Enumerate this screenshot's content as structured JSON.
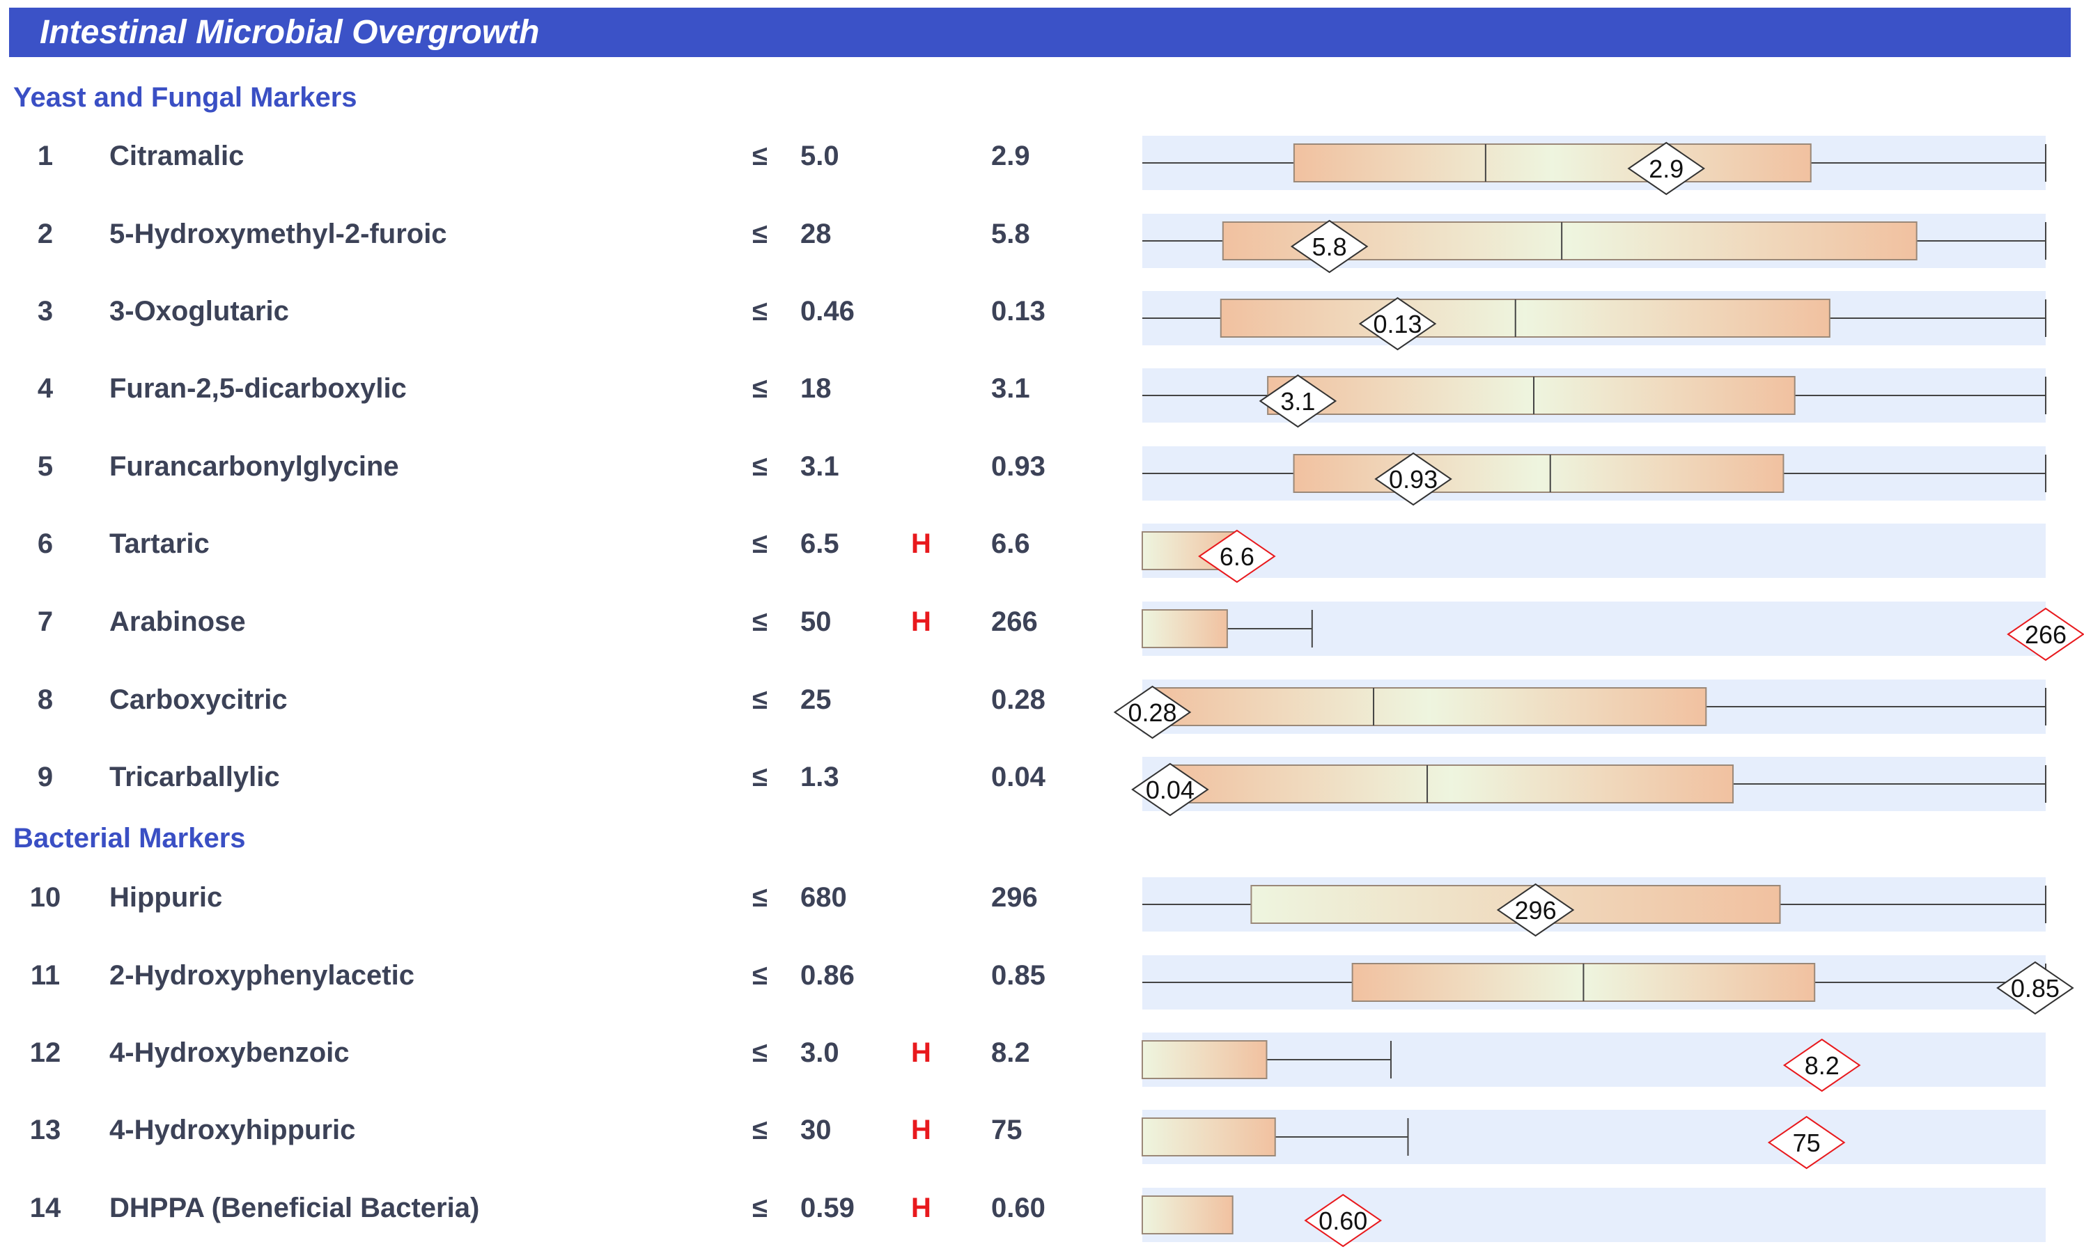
{
  "title": "Intestinal Microbial Overgrowth",
  "le_symbol": "≤",
  "colors": {
    "header": "#3b52c7",
    "section": "#3a4fc4",
    "row_band": "#e6eefc",
    "box_outer": "#f1c1a0",
    "box_center": "#eef5df",
    "high_flag": "#e8191d",
    "normal_marker_border": "#333333",
    "high_marker_border": "#e8191d"
  },
  "chart_data": {
    "type": "box-and-whisker",
    "title": "Intestinal Microbial Overgrowth",
    "sections": [
      {
        "name": "Yeast and Fungal Markers",
        "rows": [
          {
            "num": "1",
            "name": "Citramalic",
            "limit": "5.0",
            "flag": "",
            "result": "2.9",
            "value": 2.9,
            "q1": 0.84,
            "median": 1.9,
            "q3": 3.7,
            "max": 5.0,
            "scale_max": 5.0
          },
          {
            "num": "2",
            "name": "5-Hydroxymethyl-2-furoic",
            "limit": "28",
            "flag": "",
            "result": "5.8",
            "value": 5.8,
            "q1": 2.5,
            "median": 13,
            "q3": 24,
            "max": 28,
            "scale_max": 28
          },
          {
            "num": "3",
            "name": "3-Oxoglutaric",
            "limit": "0.46",
            "flag": "",
            "result": "0.13",
            "value": 0.13,
            "q1": 0.04,
            "median": 0.19,
            "q3": 0.35,
            "max": 0.46,
            "scale_max": 0.46
          },
          {
            "num": "4",
            "name": "Furan-2,5-dicarboxylic",
            "limit": "18",
            "flag": "",
            "result": "3.1",
            "value": 3.1,
            "q1": 2.5,
            "median": 7.8,
            "q3": 13,
            "max": 18,
            "scale_max": 18
          },
          {
            "num": "5",
            "name": "Furancarbonylglycine",
            "limit": "3.1",
            "flag": "",
            "result": "0.93",
            "value": 0.93,
            "q1": 0.52,
            "median": 1.4,
            "q3": 2.2,
            "max": 3.1,
            "scale_max": 3.1
          },
          {
            "num": "6",
            "name": "Tartaric",
            "limit": "6.5",
            "flag": "H",
            "result": "6.6",
            "value": 6.6,
            "q1": 0,
            "median": null,
            "q3": 6.5,
            "max": null,
            "scale_max": 63
          },
          {
            "num": "7",
            "name": "Arabinose",
            "limit": "50",
            "flag": "H",
            "result": "266",
            "value": 266,
            "q1": 0,
            "median": null,
            "q3": 25,
            "max": 50,
            "scale_max": 266
          },
          {
            "num": "8",
            "name": "Carboxycitric",
            "limit": "25",
            "flag": "",
            "result": "0.28",
            "value": 0.28,
            "q1": 0.28,
            "median": 6.4,
            "q3": 15.6,
            "max": 25,
            "scale_max": 25
          },
          {
            "num": "9",
            "name": "Tricarballylic",
            "limit": "1.3",
            "flag": "",
            "result": "0.04",
            "value": 0.04,
            "q1": 0.04,
            "median": 0.41,
            "q3": 0.85,
            "max": 1.3,
            "scale_max": 1.3
          }
        ]
      },
      {
        "name": "Bacterial Markers",
        "rows": [
          {
            "num": "10",
            "name": "Hippuric",
            "limit": "680",
            "flag": "",
            "result": "296",
            "value": 296,
            "q1": 82,
            "median": null,
            "q3": 480,
            "max": 680,
            "scale_max": 680
          },
          {
            "num": "11",
            "name": "2-Hydroxyphenylacetic",
            "limit": "0.86",
            "flag": "",
            "result": "0.85",
            "value": 0.85,
            "q1": 0.2,
            "median": 0.42,
            "q3": 0.64,
            "max": 0.86,
            "scale_max": 0.86
          },
          {
            "num": "12",
            "name": "4-Hydroxybenzoic",
            "limit": "3.0",
            "flag": "H",
            "result": "8.2",
            "value": 8.2,
            "q1": 0,
            "median": null,
            "q3": 1.5,
            "max": 3.0,
            "scale_max": 10.9
          },
          {
            "num": "13",
            "name": "4-Hydroxyhippuric",
            "limit": "30",
            "flag": "H",
            "result": "75",
            "value": 75,
            "q1": 0,
            "median": null,
            "q3": 15,
            "max": 30,
            "scale_max": 102
          },
          {
            "num": "14",
            "name": "DHPPA (Beneficial Bacteria)",
            "limit": "0.59",
            "flag": "H",
            "result": "0.60",
            "value": 0.6,
            "q1": 0,
            "median": null,
            "q3": 0.27,
            "max": null,
            "scale_max": 2.7
          }
        ]
      }
    ]
  }
}
